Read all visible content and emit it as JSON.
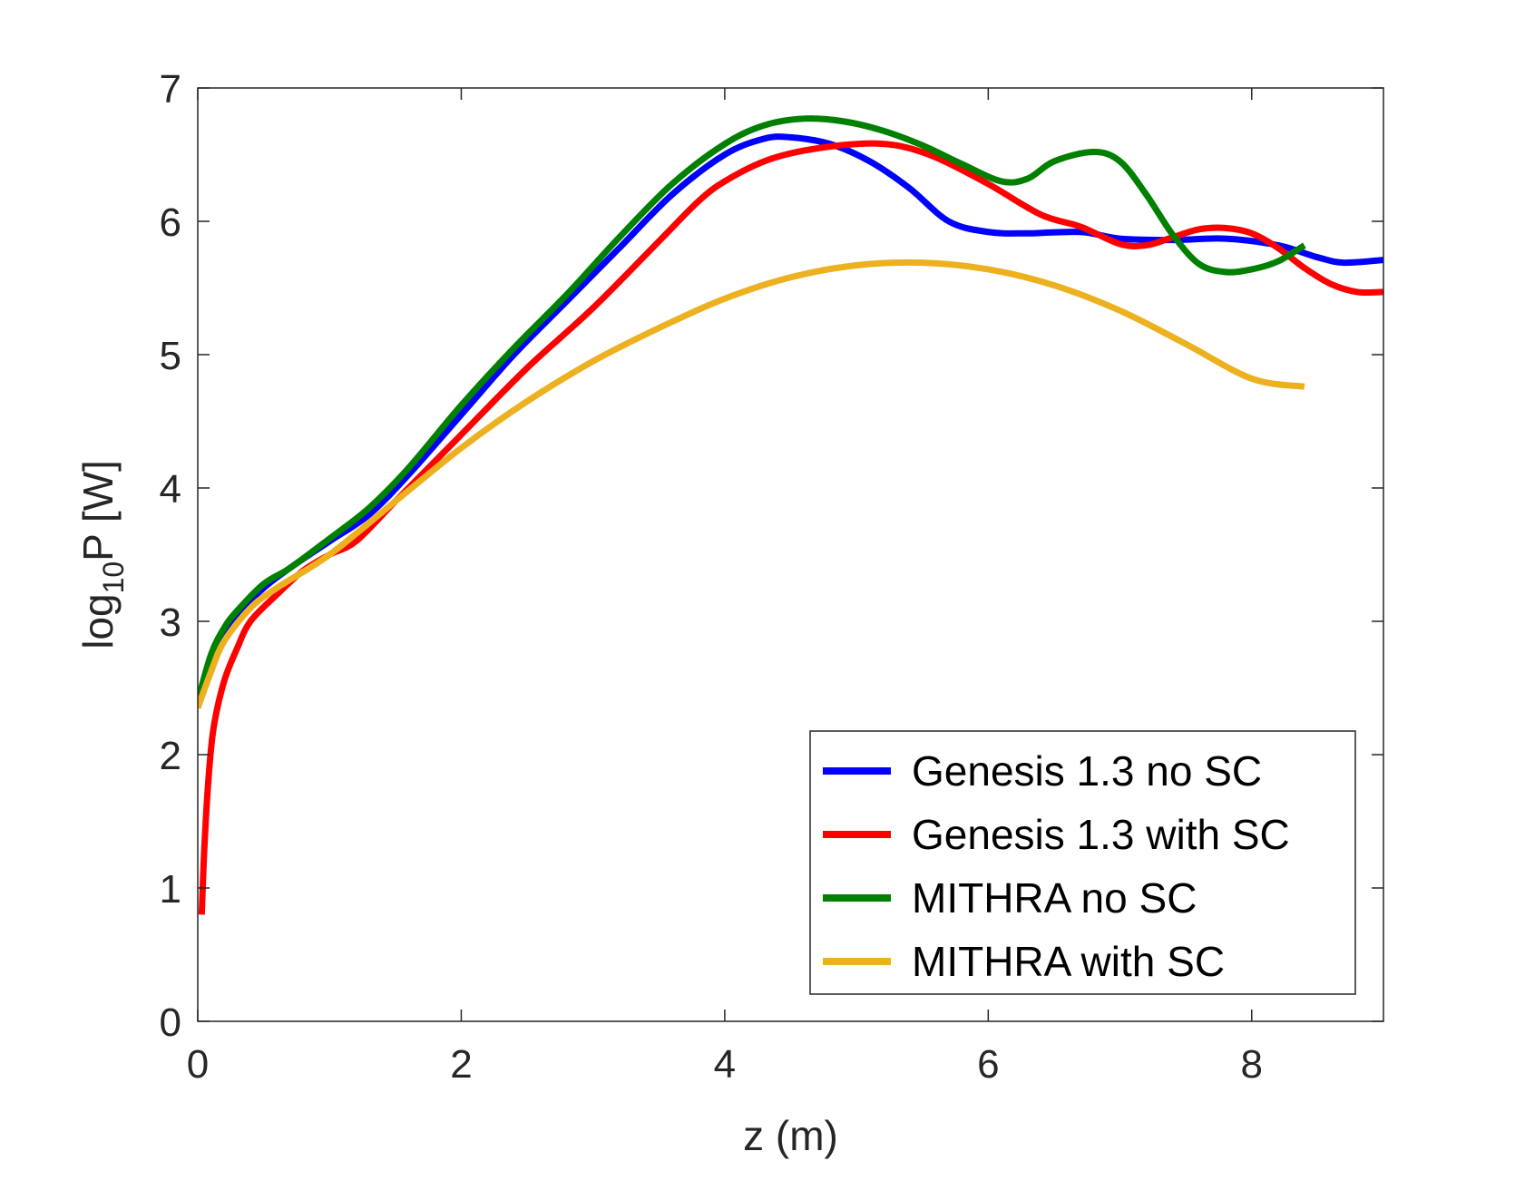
{
  "chart_data": {
    "type": "line",
    "title": "",
    "xlabel": "z (m)",
    "ylabel": {
      "base": "log",
      "subscript": "10",
      "rest": "P [W]"
    },
    "xlim": [
      0,
      9
    ],
    "ylim": [
      0,
      7
    ],
    "xticks": [
      0,
      2,
      4,
      6,
      8
    ],
    "yticks": [
      0,
      1,
      2,
      3,
      4,
      5,
      6,
      7
    ],
    "grid": false,
    "legend": "bottom-right",
    "series": [
      {
        "name": "Genesis 1.3 no SC",
        "color": "#0000ff",
        "x": [
          0.0,
          0.1,
          0.2,
          0.3,
          0.5,
          0.7,
          1.0,
          1.3,
          1.6,
          2.0,
          2.4,
          2.8,
          3.2,
          3.6,
          4.0,
          4.3,
          4.5,
          4.8,
          5.1,
          5.4,
          5.7,
          6.0,
          6.3,
          6.7,
          7.0,
          7.4,
          7.8,
          8.2,
          8.5,
          8.7,
          9.0
        ],
        "y": [
          2.4,
          2.7,
          2.9,
          3.05,
          3.25,
          3.4,
          3.6,
          3.8,
          4.1,
          4.55,
          5.0,
          5.4,
          5.8,
          6.2,
          6.5,
          6.62,
          6.63,
          6.58,
          6.45,
          6.25,
          6.0,
          5.92,
          5.91,
          5.92,
          5.87,
          5.86,
          5.87,
          5.82,
          5.73,
          5.69,
          5.71
        ]
      },
      {
        "name": "Genesis 1.3 with SC",
        "color": "#ff0000",
        "x": [
          0.03,
          0.05,
          0.08,
          0.12,
          0.2,
          0.3,
          0.4,
          0.6,
          0.8,
          1.0,
          1.2,
          1.5,
          2.0,
          2.5,
          3.0,
          3.5,
          3.8,
          4.0,
          4.3,
          4.6,
          5.0,
          5.3,
          5.6,
          6.0,
          6.4,
          6.7,
          7.0,
          7.2,
          7.4,
          7.6,
          7.8,
          8.0,
          8.2,
          8.4,
          8.6,
          8.8,
          9.0
        ],
        "y": [
          0.8,
          1.3,
          1.8,
          2.2,
          2.55,
          2.8,
          3.0,
          3.2,
          3.38,
          3.5,
          3.6,
          3.9,
          4.4,
          4.9,
          5.35,
          5.85,
          6.15,
          6.3,
          6.45,
          6.53,
          6.58,
          6.57,
          6.48,
          6.28,
          6.05,
          5.96,
          5.83,
          5.82,
          5.88,
          5.94,
          5.95,
          5.91,
          5.8,
          5.65,
          5.53,
          5.47,
          5.47
        ]
      },
      {
        "name": "MITHRA no SC",
        "color": "#008000",
        "x": [
          0.0,
          0.1,
          0.2,
          0.3,
          0.5,
          0.7,
          1.0,
          1.3,
          1.6,
          2.0,
          2.4,
          2.8,
          3.2,
          3.6,
          4.0,
          4.3,
          4.6,
          4.9,
          5.2,
          5.5,
          5.8,
          6.1,
          6.3,
          6.5,
          6.8,
          7.0,
          7.2,
          7.4,
          7.6,
          7.8,
          8.0,
          8.2,
          8.4
        ],
        "y": [
          2.4,
          2.75,
          2.95,
          3.08,
          3.28,
          3.4,
          3.62,
          3.85,
          4.15,
          4.62,
          5.05,
          5.45,
          5.88,
          6.28,
          6.58,
          6.72,
          6.77,
          6.75,
          6.68,
          6.57,
          6.43,
          6.3,
          6.32,
          6.45,
          6.52,
          6.45,
          6.2,
          5.9,
          5.68,
          5.62,
          5.64,
          5.7,
          5.82
        ]
      },
      {
        "name": "MITHRA with SC",
        "color": "#edb120",
        "x": [
          0.0,
          0.1,
          0.2,
          0.4,
          0.6,
          1.0,
          1.5,
          2.0,
          2.5,
          3.0,
          3.5,
          4.0,
          4.5,
          5.0,
          5.5,
          6.0,
          6.5,
          7.0,
          7.5,
          8.0,
          8.4
        ],
        "y": [
          2.35,
          2.62,
          2.85,
          3.1,
          3.25,
          3.5,
          3.9,
          4.3,
          4.65,
          4.95,
          5.2,
          5.42,
          5.58,
          5.67,
          5.69,
          5.64,
          5.52,
          5.33,
          5.08,
          4.82,
          4.76
        ]
      }
    ]
  }
}
